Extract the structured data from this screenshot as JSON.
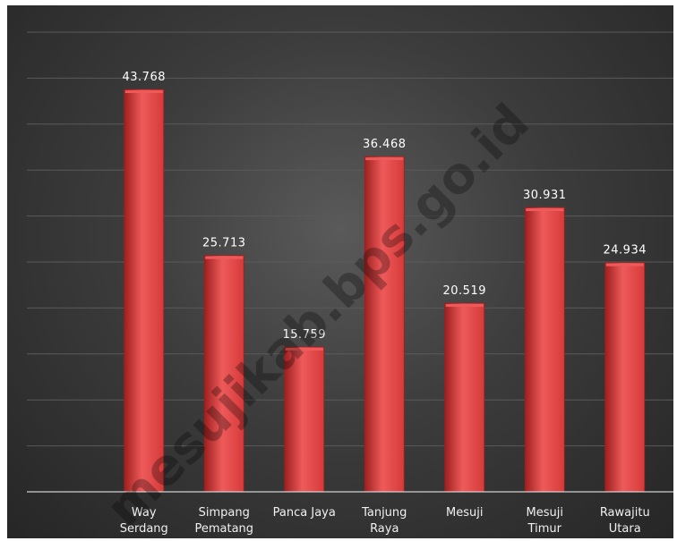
{
  "watermark": "mesujikab.bps.go.id",
  "colors": {
    "bar": "#d63a3a",
    "bar_highlight": "#ee5a5a",
    "bar_shadow": "#9e1f1f",
    "gridline": "#5a5a5a",
    "axis": "#cfcfcf"
  },
  "chart_data": {
    "type": "bar",
    "title": "",
    "xlabel": "",
    "ylabel": "",
    "ylim": [
      0,
      50
    ],
    "grid": true,
    "legend": "none",
    "categories": [
      [
        "Way",
        "Serdang"
      ],
      [
        "Simpang",
        "Pematang"
      ],
      [
        "Panca Jaya"
      ],
      [
        "Tanjung",
        "Raya"
      ],
      [
        "Mesuji"
      ],
      [
        "Mesuji",
        "Timur"
      ],
      [
        "Rawajitu",
        "Utara"
      ]
    ],
    "values": [
      43.768,
      25.713,
      15.759,
      36.468,
      20.519,
      30.931,
      24.934
    ],
    "data_labels": [
      "43.768",
      "25.713",
      "15.759",
      "36.468",
      "20.519",
      "30.931",
      "24.934"
    ]
  }
}
